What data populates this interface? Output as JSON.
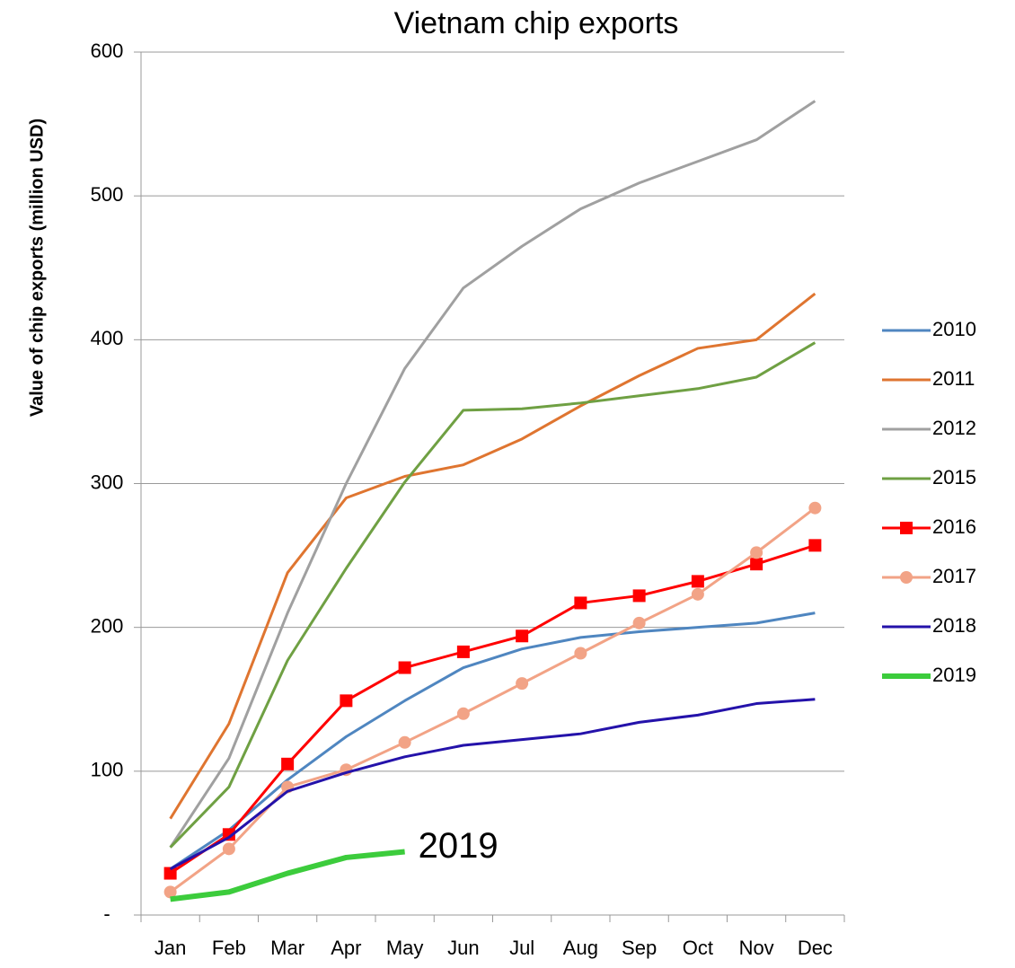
{
  "chart_data": {
    "type": "line",
    "title": "Vietnam chip exports",
    "y_label": "Value of chip exports (million USD)",
    "categories": [
      "Jan",
      "Feb",
      "Mar",
      "Apr",
      "May",
      "Jun",
      "Jul",
      "Aug",
      "Sep",
      "Oct",
      "Nov",
      "Dec"
    ],
    "series": [
      {
        "name": "2010",
        "color": "#4f86c0",
        "values": [
          32,
          59,
          94,
          124,
          149,
          172,
          185,
          193,
          197,
          200,
          203,
          210
        ]
      },
      {
        "name": "2011",
        "color": "#df7530",
        "values": [
          67,
          133,
          238,
          290,
          305,
          313,
          331,
          354,
          375,
          394,
          400,
          432
        ]
      },
      {
        "name": "2012",
        "color": "#a0a0a0",
        "values": [
          47,
          109,
          210,
          300,
          380,
          436,
          465,
          491,
          509,
          524,
          539,
          566
        ]
      },
      {
        "name": "2015",
        "color": "#6fa043",
        "values": [
          47,
          89,
          177,
          241,
          301,
          351,
          352,
          356,
          361,
          366,
          374,
          398
        ]
      },
      {
        "name": "2016",
        "color": "#ff0000",
        "marker": "square",
        "values": [
          29,
          56,
          105,
          149,
          172,
          183,
          194,
          217,
          222,
          232,
          244,
          257
        ]
      },
      {
        "name": "2017",
        "color": "#f2a386",
        "marker": "circle",
        "values": [
          16,
          46,
          89,
          101,
          120,
          140,
          161,
          182,
          203,
          223,
          252,
          283
        ]
      },
      {
        "name": "2018",
        "color": "#2412aa",
        "values": [
          32,
          54,
          86,
          99,
          110,
          118,
          122,
          126,
          134,
          139,
          147,
          150
        ]
      },
      {
        "name": "2019",
        "color": "#3ccc3c",
        "thick": true,
        "values": [
          11,
          16,
          29,
          40,
          44,
          null,
          null,
          null,
          null,
          null,
          null,
          null
        ]
      }
    ],
    "annotation": "2019",
    "ylim": [
      0,
      600
    ],
    "yticks": [
      {
        "value": 0,
        "label": "-"
      },
      100,
      200,
      300,
      400,
      500,
      600
    ],
    "grid": true,
    "legend": "right"
  }
}
